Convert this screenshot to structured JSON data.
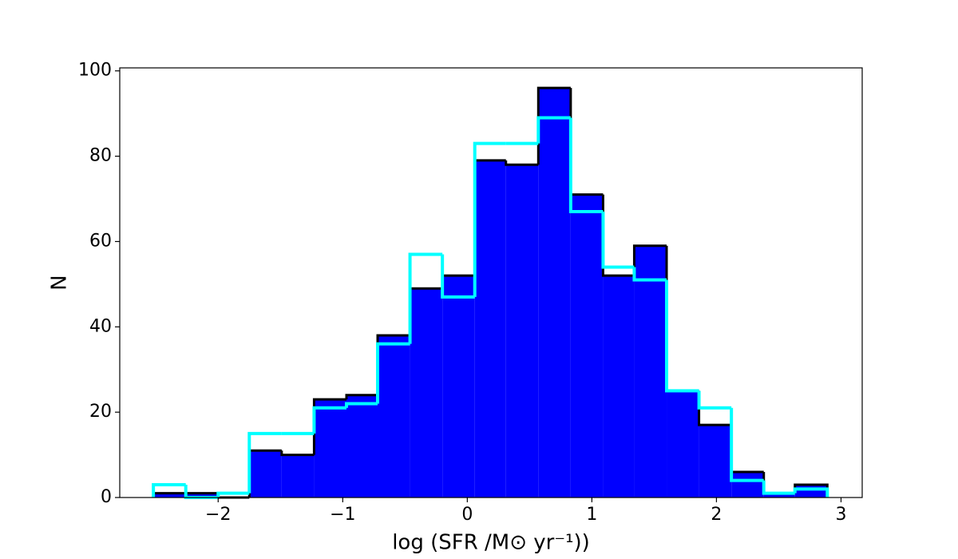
{
  "chart_data": {
    "type": "histogram",
    "x_label": "log (SFR /M⊙ yr⁻¹))",
    "y_label": "N",
    "bins": [
      -2.52,
      -2.26,
      -2.0,
      -1.75,
      -1.49,
      -1.23,
      -0.97,
      -0.72,
      -0.46,
      -0.2,
      0.06,
      0.31,
      0.57,
      0.83,
      1.09,
      1.34,
      1.6,
      1.86,
      2.12,
      2.38,
      2.63,
      2.89
    ],
    "series": [
      {
        "color": "#0000ff",
        "edgecolor": "#000000",
        "style": "filled",
        "values": [
          1,
          1,
          0,
          11,
          10,
          23,
          24,
          38,
          49,
          52,
          79,
          78,
          96,
          71,
          52,
          59,
          25,
          17,
          6,
          1,
          3
        ]
      },
      {
        "color": "#00ffff",
        "style": "step",
        "values": [
          3,
          0,
          1,
          15,
          15,
          21,
          22,
          36,
          57,
          47,
          83,
          83,
          89,
          67,
          54,
          51,
          25,
          21,
          4,
          1,
          2
        ]
      }
    ],
    "xlim": [
      -2.79,
      3.17
    ],
    "ylim": [
      0,
      100.7
    ],
    "xticks": [
      {
        "value": -2,
        "label": "−2"
      },
      {
        "value": -1,
        "label": "−1"
      },
      0,
      1,
      2,
      3
    ],
    "yticks": [
      0,
      20,
      40,
      60,
      80,
      100
    ],
    "grid": false
  }
}
